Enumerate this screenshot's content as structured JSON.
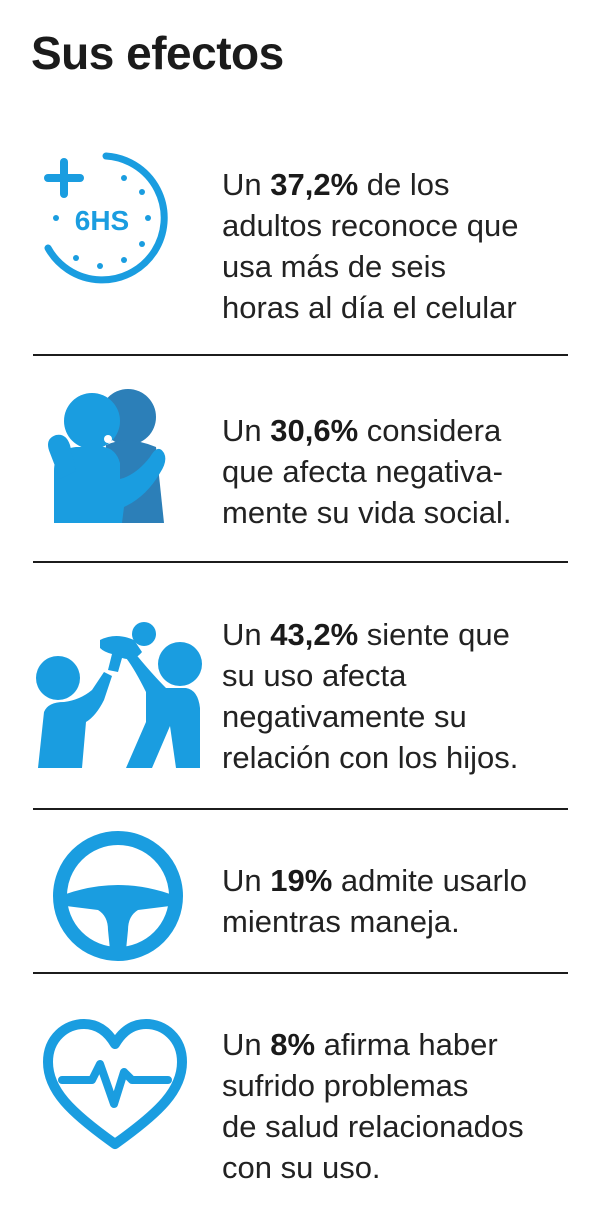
{
  "title": "Sus efectos",
  "accent_color": "#1a9de0",
  "items": [
    {
      "icon": "clock-6hs-icon",
      "icon_label": "6HS",
      "prefix": "Un ",
      "value": "37,2%",
      "lines": [
        " de los",
        "adultos reconoce que",
        "usa más de seis",
        "horas al día el celular"
      ]
    },
    {
      "icon": "hug-icon",
      "prefix": "Un ",
      "value": "30,6%",
      "lines": [
        " considera",
        "que afecta negativa-",
        "mente su vida social."
      ]
    },
    {
      "icon": "family-icon",
      "prefix": "Un ",
      "value": "43,2%",
      "lines": [
        " siente que",
        "su uso afecta",
        "negativamente su",
        "relación con los hijos."
      ]
    },
    {
      "icon": "steering-wheel-icon",
      "prefix": "Un ",
      "value": "19%",
      "lines": [
        " admite usarlo",
        "mientras maneja."
      ]
    },
    {
      "icon": "heart-pulse-icon",
      "prefix": "Un ",
      "value": "8%",
      "lines": [
        " afirma haber",
        "sufrido problemas",
        "de salud relacionados",
        "con su uso."
      ]
    }
  ]
}
